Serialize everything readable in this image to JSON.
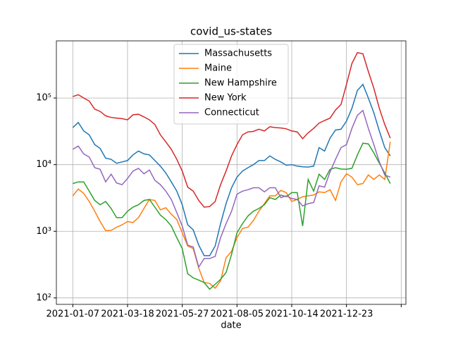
{
  "chart_data": {
    "type": "line",
    "title": "covid_us-states",
    "x_label": "date",
    "x": [
      "2021-01-07",
      "2021-01-14",
      "2021-01-21",
      "2021-01-28",
      "2021-02-04",
      "2021-02-11",
      "2021-02-18",
      "2021-02-25",
      "2021-03-04",
      "2021-03-11",
      "2021-03-18",
      "2021-03-25",
      "2021-04-01",
      "2021-04-08",
      "2021-04-15",
      "2021-04-22",
      "2021-04-29",
      "2021-05-06",
      "2021-05-13",
      "2021-05-20",
      "2021-05-27",
      "2021-06-03",
      "2021-06-10",
      "2021-06-17",
      "2021-06-24",
      "2021-07-01",
      "2021-07-08",
      "2021-07-15",
      "2021-07-22",
      "2021-07-29",
      "2021-08-05",
      "2021-08-12",
      "2021-08-19",
      "2021-08-26",
      "2021-09-02",
      "2021-09-09",
      "2021-09-16",
      "2021-09-23",
      "2021-09-30",
      "2021-10-07",
      "2021-10-14",
      "2021-10-21",
      "2021-10-28",
      "2021-11-04",
      "2021-11-11",
      "2021-11-18",
      "2021-11-25",
      "2021-12-02",
      "2021-12-09",
      "2021-12-16",
      "2021-12-23",
      "2021-12-30",
      "2022-01-06",
      "2022-01-13",
      "2022-01-20",
      "2022-01-27",
      "2022-02-03",
      "2022-02-10",
      "2022-02-17"
    ],
    "series": [
      {
        "name": "Massachusetts",
        "color": "#1f77b4",
        "values": [
          36000,
          43000,
          32000,
          28000,
          20000,
          17500,
          12500,
          12000,
          10500,
          11000,
          11500,
          14000,
          16000,
          14500,
          14000,
          11500,
          9500,
          7500,
          5500,
          4000,
          2500,
          1250,
          1050,
          620,
          430,
          430,
          600,
          1300,
          2600,
          4500,
          6500,
          8000,
          9000,
          10000,
          11500,
          11500,
          13500,
          12000,
          11000,
          9800,
          10000,
          9500,
          9300,
          9200,
          9500,
          18000,
          16000,
          25000,
          33000,
          34000,
          45000,
          70000,
          130000,
          160000,
          100000,
          60000,
          32000,
          18000,
          13500
        ]
      },
      {
        "name": "Maine",
        "color": "#ff7f0e",
        "values": [
          3400,
          4300,
          3700,
          2800,
          2000,
          1400,
          1020,
          1030,
          1150,
          1250,
          1400,
          1350,
          1600,
          2200,
          3000,
          2900,
          2100,
          2250,
          1800,
          1500,
          950,
          600,
          550,
          280,
          170,
          165,
          140,
          180,
          400,
          500,
          800,
          1100,
          1150,
          1450,
          2000,
          2600,
          3400,
          3400,
          4100,
          3800,
          2800,
          3000,
          3300,
          3400,
          3500,
          3900,
          3800,
          4200,
          2900,
          5500,
          7300,
          6500,
          5000,
          5200,
          7000,
          6000,
          7000,
          6000,
          22000
        ]
      },
      {
        "name": "New Hampshire",
        "color": "#2ca02c",
        "values": [
          5200,
          5500,
          5500,
          4000,
          2900,
          2500,
          2800,
          2200,
          1600,
          1600,
          2000,
          2300,
          2500,
          2900,
          3000,
          2300,
          1750,
          1500,
          1200,
          800,
          550,
          230,
          200,
          185,
          170,
          135,
          160,
          190,
          240,
          450,
          950,
          1300,
          1700,
          2000,
          2200,
          2500,
          3200,
          3000,
          3500,
          3300,
          3800,
          3800,
          1200,
          6000,
          4000,
          7200,
          6000,
          8500,
          9000,
          8600,
          8500,
          8800,
          14000,
          21000,
          20500,
          15000,
          10500,
          7500,
          5200
        ]
      },
      {
        "name": "New York",
        "color": "#d62728",
        "values": [
          105000,
          112000,
          100000,
          90000,
          68000,
          63000,
          54000,
          51000,
          50000,
          49000,
          47000,
          56000,
          57000,
          52000,
          47000,
          40000,
          28000,
          22000,
          17000,
          12000,
          8000,
          4600,
          4000,
          2900,
          2300,
          2350,
          2800,
          5000,
          8000,
          13500,
          20000,
          28000,
          31000,
          31500,
          34000,
          32000,
          37000,
          36000,
          35500,
          34500,
          32000,
          31000,
          24500,
          30000,
          35000,
          42000,
          46000,
          50000,
          66000,
          80000,
          160000,
          330000,
          480000,
          460000,
          250000,
          140000,
          70000,
          40000,
          25000
        ]
      },
      {
        "name": "Connecticut",
        "color": "#9467bd",
        "values": [
          17000,
          19000,
          14500,
          13000,
          9000,
          8500,
          5500,
          7200,
          5300,
          5000,
          6200,
          8000,
          8800,
          7300,
          8300,
          5800,
          5000,
          4000,
          3000,
          1900,
          1200,
          620,
          580,
          290,
          390,
          390,
          420,
          800,
          1300,
          2000,
          3600,
          4000,
          4200,
          4500,
          4500,
          3900,
          4500,
          4500,
          3200,
          3400,
          3100,
          3000,
          2400,
          2600,
          2700,
          4800,
          4600,
          7800,
          12000,
          18000,
          20000,
          35000,
          55000,
          65000,
          35000,
          20000,
          11000,
          7000,
          6500
        ]
      }
    ],
    "xlim": [
      "2020-12-17",
      "2022-03-09"
    ],
    "xticks": [
      "2021-01-07",
      "2021-03-18",
      "2021-05-27",
      "2021-08-05",
      "2021-10-14",
      "2021-12-23",
      {
        "value": "2022-03-03",
        "label": null
      }
    ],
    "ylim": [
      80,
      720000
    ],
    "log_y": true,
    "yticks": [
      {
        "value": 100,
        "label": "10²"
      },
      {
        "value": 1000,
        "label": "10³"
      },
      {
        "value": 10000,
        "label": "10⁴"
      },
      {
        "value": 100000,
        "label": "10⁵"
      }
    ],
    "grid": true,
    "legend": "upper center"
  }
}
